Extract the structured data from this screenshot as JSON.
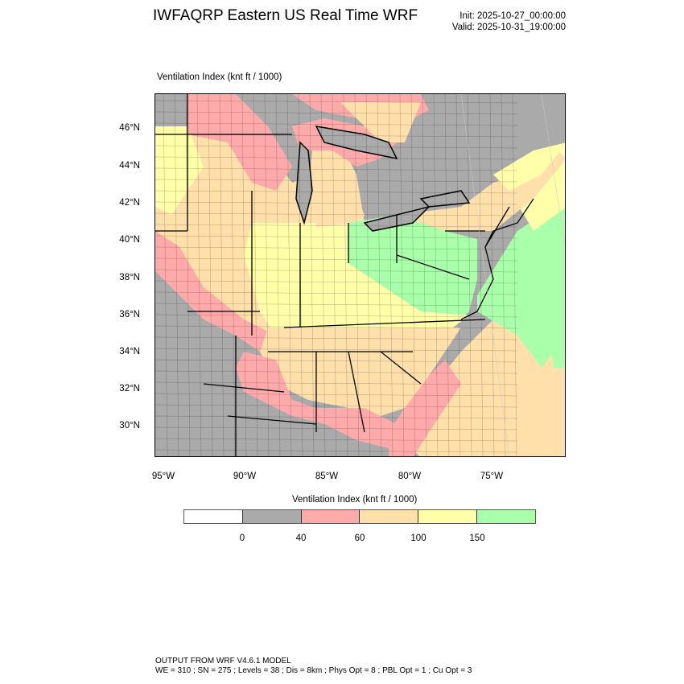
{
  "header": {
    "title": "IWFAQRP Eastern US Real Time WRF",
    "init": "Init: 2025-10-27_00:00:00",
    "valid": "Valid: 2025-10-31_19:00:00",
    "subtitle": "Ventilation Index   (knt ft / 1000)"
  },
  "map": {
    "lat_labels": [
      "46°N",
      "44°N",
      "42°N",
      "40°N",
      "38°N",
      "36°N",
      "34°N",
      "32°N",
      "30°N"
    ],
    "lon_labels": [
      "95°W",
      "90°W",
      "85°W",
      "80°W",
      "75°W"
    ]
  },
  "colorbar": {
    "title": "Ventilation Index  (knt ft / 1000)",
    "colors": [
      "#ffffff",
      "#aaaaaa",
      "#ffaaaa",
      "#ffe0aa",
      "#ffffaa",
      "#aaffaa"
    ],
    "labels": [
      "0",
      "40",
      "60",
      "100",
      "150"
    ]
  },
  "footer": {
    "line1": "OUTPUT FROM WRF V4.6.1 MODEL",
    "line2": "WE = 310 ; SN = 275 ; Levels = 38 ; Dis = 8km ; Phys Opt = 8 ; PBL Opt = 1 ; Cu Opt = 3"
  }
}
